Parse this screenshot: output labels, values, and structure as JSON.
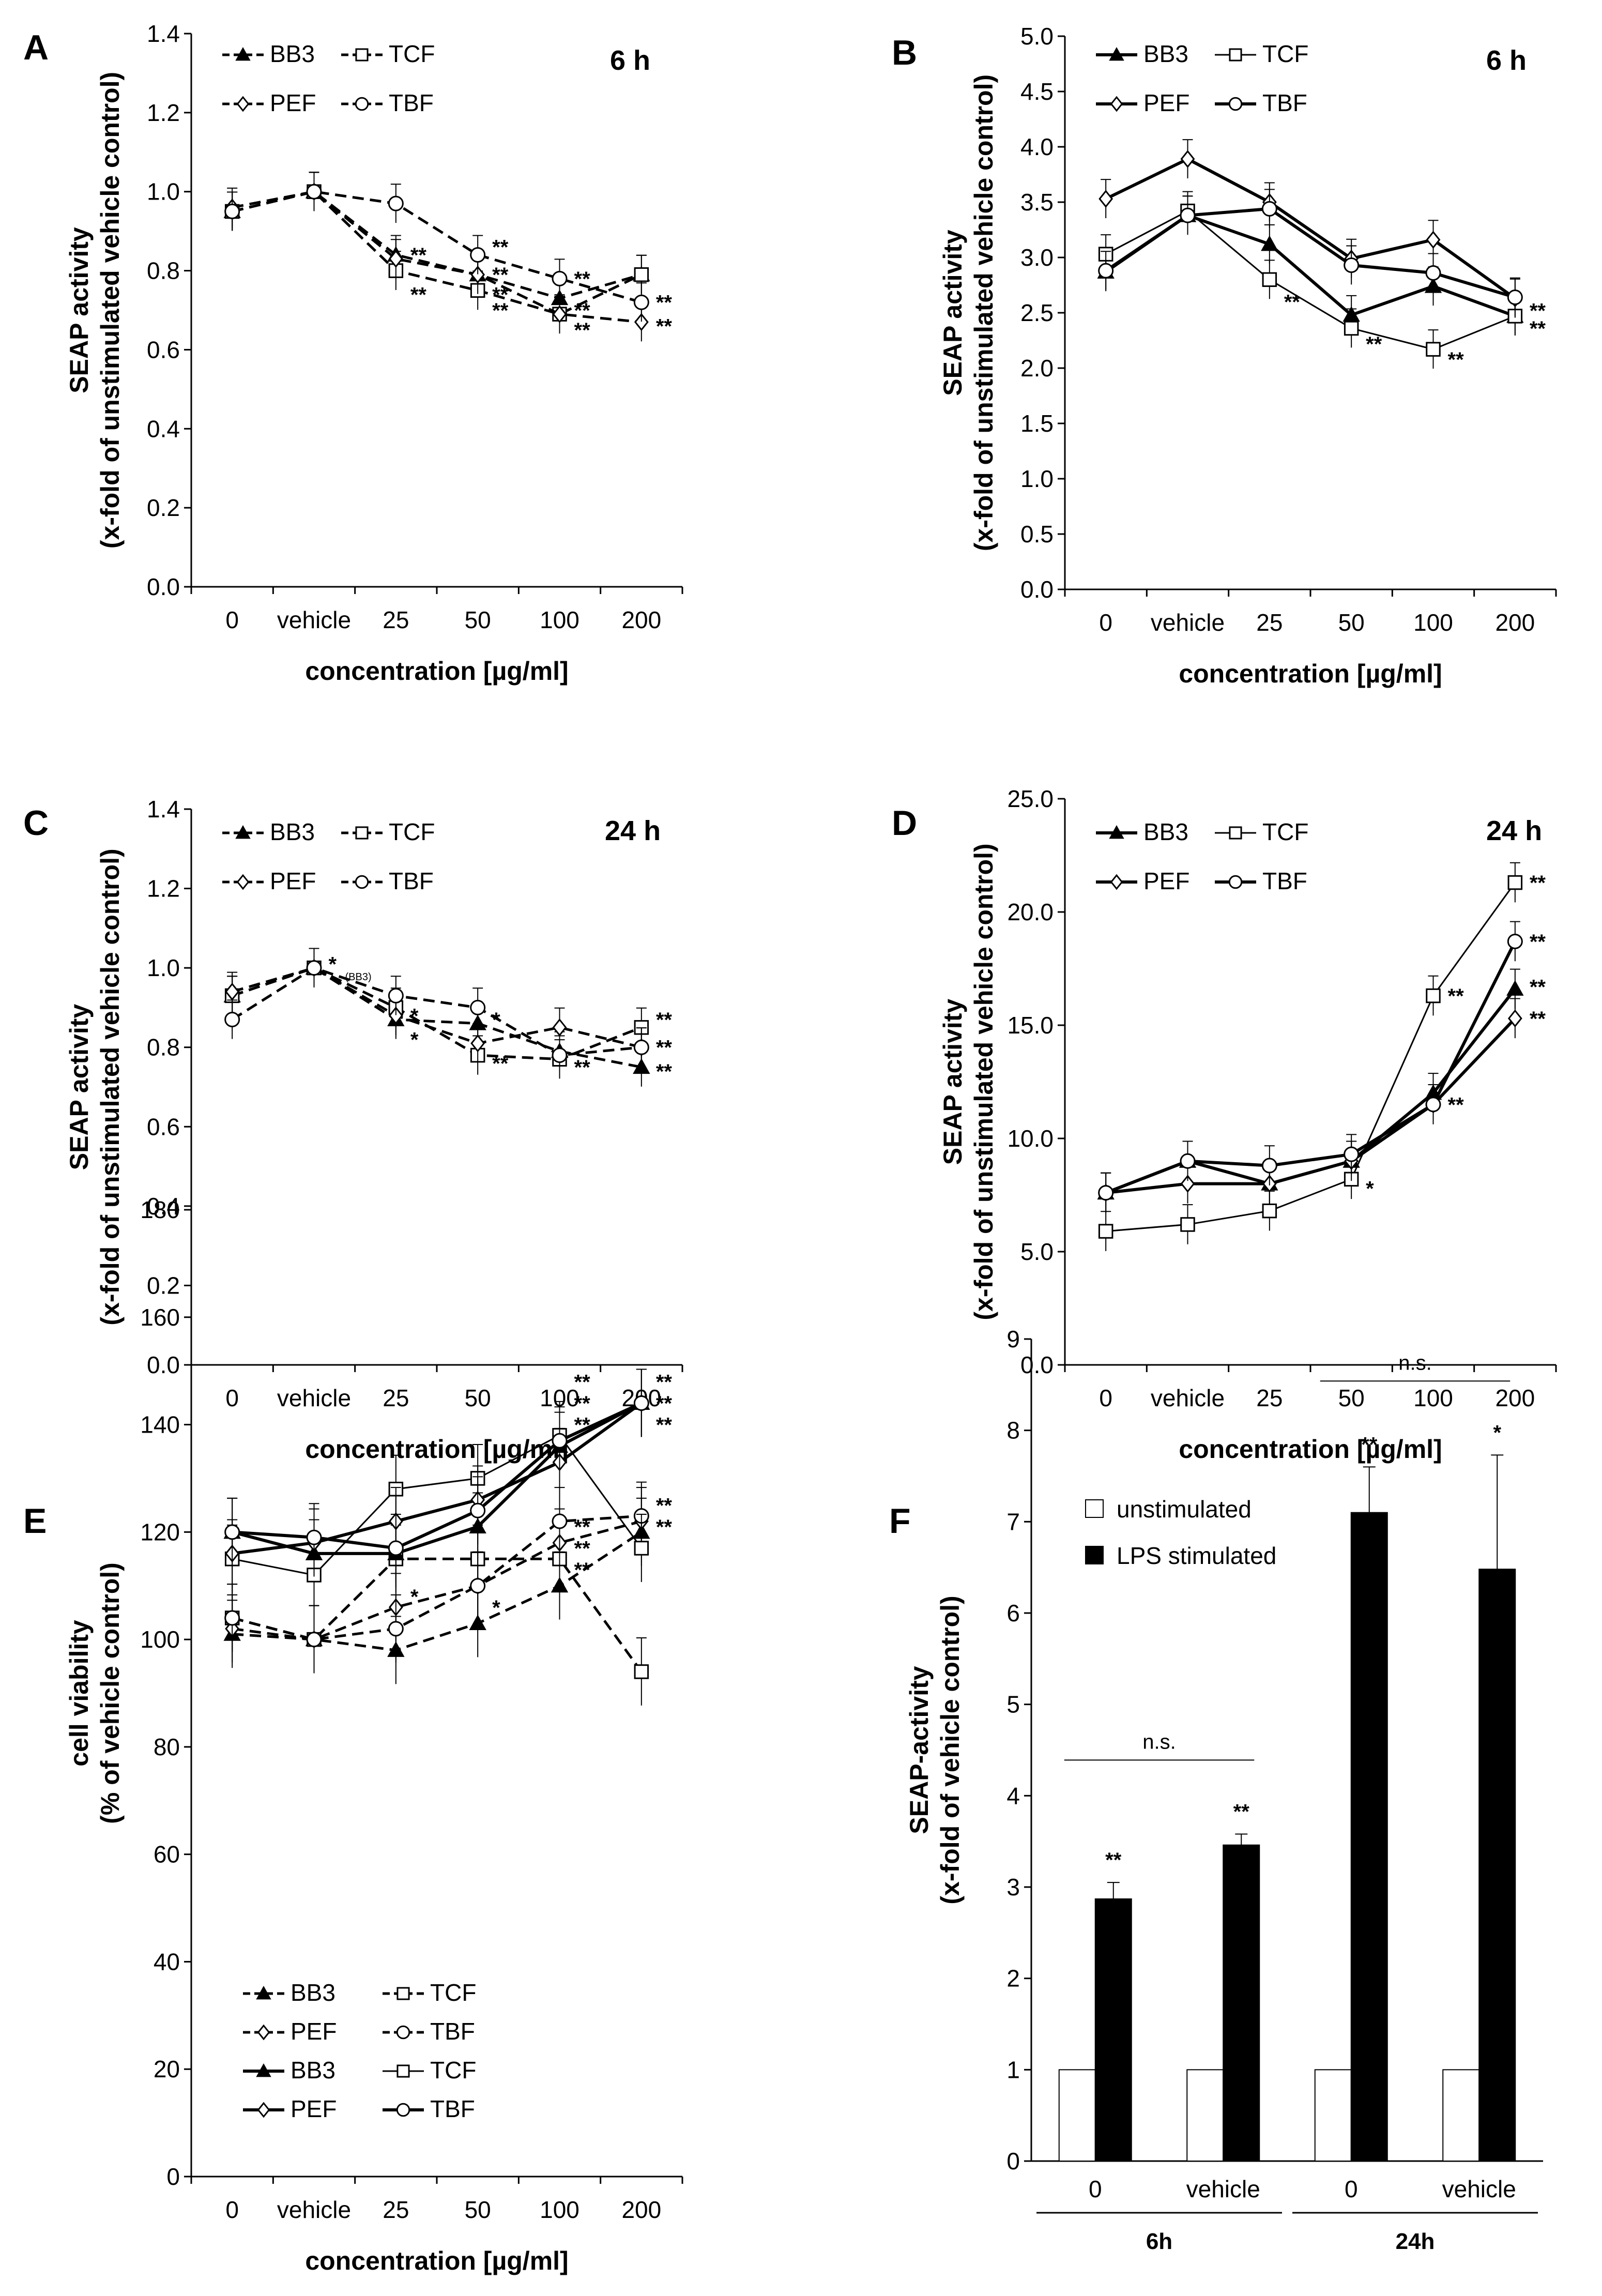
{
  "charts": [
    {
      "panel": "A",
      "time": "6 h",
      "type": "line",
      "ylabel_line1": "SEAP activity",
      "ylabel_line2": "(x-fold of unstimulated vehicle control)",
      "xlabel": "concentration [µg/ml]",
      "categories": [
        "0",
        "vehicle",
        "25",
        "50",
        "100",
        "200"
      ],
      "ylim": [
        0,
        1.4
      ],
      "ytick_labels": [
        "0.0",
        "0.2",
        "0.4",
        "0.6",
        "0.8",
        "1.0",
        "1.2",
        "1.4"
      ],
      "series": [
        {
          "name": "BB3",
          "values": [
            0.95,
            1.0,
            0.84,
            0.79,
            0.73,
            0.79
          ]
        },
        {
          "name": "TCF",
          "values": [
            0.95,
            1.0,
            0.8,
            0.75,
            0.69,
            0.79
          ]
        },
        {
          "name": "PEF",
          "values": [
            0.96,
            1.0,
            0.83,
            0.79,
            0.69,
            0.67
          ]
        },
        {
          "name": "TBF",
          "values": [
            0.95,
            1.0,
            0.97,
            0.84,
            0.78,
            0.72
          ]
        }
      ],
      "significance": [
        {
          "label": "**",
          "at": [
            2,
            0.84
          ]
        },
        {
          "label": "**",
          "at": [
            2,
            0.74
          ]
        },
        {
          "label": "**",
          "at": [
            3,
            0.86
          ]
        },
        {
          "label": "**",
          "at": [
            3,
            0.79
          ]
        },
        {
          "label": "**",
          "at": [
            3,
            0.74
          ]
        },
        {
          "label": "**",
          "at": [
            3,
            0.7
          ]
        },
        {
          "label": "**",
          "at": [
            4,
            0.78
          ]
        },
        {
          "label": "**",
          "at": [
            4,
            0.7
          ]
        },
        {
          "label": "**",
          "at": [
            4,
            0.65
          ]
        },
        {
          "label": "**",
          "at": [
            5,
            0.72
          ]
        },
        {
          "label": "**",
          "at": [
            5,
            0.66
          ]
        }
      ]
    },
    {
      "panel": "B",
      "time": "6 h",
      "type": "line",
      "ylabel_line1": "SEAP activity",
      "ylabel_line2": "(x-fold of unstimulated vehicle control)",
      "xlabel": "concentration [µg/ml]",
      "categories": [
        "0",
        "vehicle",
        "25",
        "50",
        "100",
        "200"
      ],
      "ylim": [
        0,
        5.0
      ],
      "ytick_labels": [
        "0.0",
        "0.5",
        "1.0",
        "1.5",
        "2.0",
        "2.5",
        "3.0",
        "3.5",
        "4.0",
        "4.5",
        "5.0"
      ],
      "series": [
        {
          "name": "BB3",
          "values": [
            2.87,
            3.38,
            3.12,
            2.48,
            2.74,
            2.47
          ]
        },
        {
          "name": "TCF",
          "values": [
            3.03,
            3.42,
            2.8,
            2.36,
            2.17,
            2.47
          ]
        },
        {
          "name": "PEF",
          "values": [
            3.53,
            3.89,
            3.5,
            2.99,
            3.16,
            2.63
          ]
        },
        {
          "name": "TBF",
          "values": [
            2.88,
            3.38,
            3.44,
            2.93,
            2.86,
            2.64
          ]
        }
      ],
      "significance": [
        {
          "label": "**",
          "at": [
            2,
            2.6
          ]
        },
        {
          "label": "**",
          "at": [
            3,
            2.22
          ]
        },
        {
          "label": "**",
          "at": [
            4,
            2.08
          ]
        },
        {
          "label": "**",
          "at": [
            5,
            2.52
          ]
        },
        {
          "label": "**",
          "at": [
            5,
            2.36
          ]
        }
      ]
    },
    {
      "panel": "C",
      "time": "24 h",
      "type": "line",
      "ylabel_line1": "SEAP activity",
      "ylabel_line2": "(x-fold of unstimulated vehicle control)",
      "xlabel": "concentration [µg/ml]",
      "categories": [
        "0",
        "vehicle",
        "25",
        "50",
        "100",
        "200"
      ],
      "ylim": [
        0,
        1.4
      ],
      "ytick_labels": [
        "0.0",
        "0.2",
        "0.4",
        "0.6",
        "0.8",
        "1.0",
        "1.2",
        "1.4"
      ],
      "series": [
        {
          "name": "BB3",
          "values": [
            0.93,
            1.0,
            0.87,
            0.86,
            0.79,
            0.75
          ]
        },
        {
          "name": "TCF",
          "values": [
            0.93,
            1.0,
            0.9,
            0.78,
            0.77,
            0.85
          ]
        },
        {
          "name": "PEF",
          "values": [
            0.94,
            1.0,
            0.88,
            0.81,
            0.85,
            0.8
          ]
        },
        {
          "name": "TBF",
          "values": [
            0.87,
            1.0,
            0.93,
            0.9,
            0.78,
            0.8
          ]
        }
      ],
      "vehicle_note": "(BB3)",
      "significance": [
        {
          "label": "*",
          "at": [
            1,
            1.01
          ]
        },
        {
          "label": "*",
          "at": [
            2,
            0.88
          ]
        },
        {
          "label": "*",
          "at": [
            2,
            0.82
          ]
        },
        {
          "label": "*",
          "at": [
            3,
            0.87
          ]
        },
        {
          "label": "**",
          "at": [
            3,
            0.76
          ]
        },
        {
          "label": "**",
          "at": [
            4,
            0.75
          ]
        },
        {
          "label": "**",
          "at": [
            5,
            0.87
          ]
        },
        {
          "label": "**",
          "at": [
            5,
            0.8
          ]
        },
        {
          "label": "**",
          "at": [
            5,
            0.74
          ]
        }
      ]
    },
    {
      "panel": "D",
      "time": "24 h",
      "type": "line",
      "ylabel_line1": "SEAP activity",
      "ylabel_line2": "(x-fold of unstimulated vehicle control)",
      "xlabel": "concentration [µg/ml]",
      "categories": [
        "0",
        "vehicle",
        "25",
        "50",
        "100",
        "200"
      ],
      "ylim": [
        0,
        25.0
      ],
      "ytick_labels": [
        "0.0",
        "5.0",
        "10.0",
        "15.0",
        "20.0",
        "25.0"
      ],
      "series": [
        {
          "name": "BB3",
          "values": [
            7.6,
            9.0,
            8.0,
            9.0,
            12.0,
            16.6
          ]
        },
        {
          "name": "TCF",
          "values": [
            5.9,
            6.2,
            6.8,
            8.2,
            16.3,
            21.3
          ]
        },
        {
          "name": "PEF",
          "values": [
            7.6,
            8.0,
            8.0,
            9.0,
            11.5,
            15.3
          ]
        },
        {
          "name": "TBF",
          "values": [
            7.6,
            9.0,
            8.8,
            9.3,
            11.5,
            18.7
          ]
        }
      ],
      "significance": [
        {
          "label": "*",
          "at": [
            3,
            7.8
          ]
        },
        {
          "label": "**",
          "at": [
            4,
            16.3
          ]
        },
        {
          "label": "**",
          "at": [
            4,
            11.5
          ]
        },
        {
          "label": "**",
          "at": [
            5,
            21.3
          ]
        },
        {
          "label": "**",
          "at": [
            5,
            18.7
          ]
        },
        {
          "label": "**",
          "at": [
            5,
            16.7
          ]
        },
        {
          "label": "**",
          "at": [
            5,
            15.3
          ]
        }
      ]
    },
    {
      "panel": "E",
      "time": "",
      "type": "line",
      "ylabel_line1": "cell viability",
      "ylabel_line2": "(% of vehicle control)",
      "xlabel": "concentration [µg/ml]",
      "categories": [
        "0",
        "vehicle",
        "25",
        "50",
        "100",
        "200"
      ],
      "ylim": [
        0,
        180
      ],
      "ytick_labels": [
        "0",
        "20",
        "40",
        "60",
        "80",
        "100",
        "120",
        "140",
        "160",
        "180"
      ],
      "series": [
        {
          "name": "BB3",
          "values": [
            101,
            100,
            98,
            103,
            110,
            120
          ],
          "style": "dashed"
        },
        {
          "name": "TCF",
          "values": [
            104,
            100,
            115,
            115,
            115,
            94
          ],
          "style": "dashed"
        },
        {
          "name": "PEF",
          "values": [
            102,
            100,
            106,
            110,
            118,
            122
          ],
          "style": "dashed"
        },
        {
          "name": "TBF",
          "values": [
            104,
            100,
            102,
            110,
            122,
            123
          ],
          "style": "dashed"
        },
        {
          "name": "BB3",
          "values": [
            120,
            116,
            116,
            121,
            136,
            144
          ],
          "style": "solid"
        },
        {
          "name": "TCF",
          "values": [
            115,
            112,
            128,
            130,
            138,
            117
          ],
          "style": "solid"
        },
        {
          "name": "PEF",
          "values": [
            116,
            118,
            122,
            126,
            133,
            144
          ],
          "style": "solid"
        },
        {
          "name": "TBF",
          "values": [
            120,
            119,
            117,
            124,
            137,
            144
          ],
          "style": "solid"
        }
      ],
      "significance": [
        {
          "label": "*",
          "at": [
            2,
            108
          ]
        },
        {
          "label": "*",
          "at": [
            3,
            106
          ]
        },
        {
          "label": "**",
          "at": [
            4,
            148
          ]
        },
        {
          "label": "**",
          "at": [
            4,
            144
          ]
        },
        {
          "label": "**",
          "at": [
            4,
            140
          ]
        },
        {
          "label": "**",
          "at": [
            4,
            121
          ]
        },
        {
          "label": "**",
          "at": [
            4,
            117
          ]
        },
        {
          "label": "**",
          "at": [
            4,
            113
          ]
        },
        {
          "label": "**",
          "at": [
            5,
            148
          ]
        },
        {
          "label": "**",
          "at": [
            5,
            144
          ]
        },
        {
          "label": "**",
          "at": [
            5,
            140
          ]
        },
        {
          "label": "**",
          "at": [
            5,
            125
          ]
        },
        {
          "label": "**",
          "at": [
            5,
            121
          ]
        }
      ]
    },
    {
      "panel": "F",
      "time": "",
      "type": "bar",
      "ylabel_line1": "SEAP-activity",
      "ylabel_line2": "(x-fold of vehicle control)",
      "categories": [
        "0",
        "vehicle",
        "0",
        "vehicle"
      ],
      "groups": [
        "6h",
        "24h"
      ],
      "ylim": [
        0,
        9
      ],
      "ytick_labels": [
        "0",
        "1",
        "2",
        "3",
        "4",
        "5",
        "6",
        "7",
        "8",
        "9"
      ],
      "series": [
        {
          "name": "unstimulated",
          "values": [
            1.0,
            1.0,
            1.0,
            1.0
          ],
          "errors": [
            0.0,
            0.0,
            0.0,
            0.0
          ]
        },
        {
          "name": "LPS stimulated",
          "values": [
            2.87,
            3.46,
            7.1,
            6.48
          ],
          "errors": [
            0.18,
            0.12,
            0.5,
            1.25
          ]
        }
      ],
      "significance": [
        "**",
        "**",
        "**",
        "*"
      ],
      "brackets": [
        "n.s.",
        "n.s."
      ]
    }
  ],
  "colors": {
    "ink": "#000000",
    "open_fill": "#ffffff",
    "solid_fill": "#000000"
  }
}
